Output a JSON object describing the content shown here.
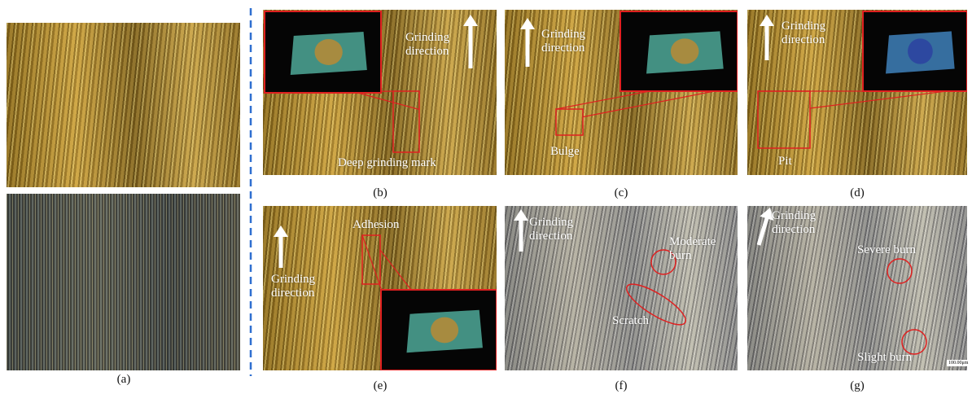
{
  "panels": [
    {
      "label": "(a)",
      "annotations": []
    },
    {
      "label": "(b)",
      "annotations": [
        "Grinding direction",
        "Deep grinding mark"
      ]
    },
    {
      "label": "(c)",
      "annotations": [
        "Grinding direction",
        "Bulge"
      ]
    },
    {
      "label": "(d)",
      "annotations": [
        "Grinding direction",
        "Pit"
      ]
    },
    {
      "label": "(e)",
      "annotations": [
        "Adhesion",
        "Grinding direction"
      ]
    },
    {
      "label": "(f)",
      "annotations": [
        "Grinding direction",
        "Moderate burn",
        "Scratch"
      ]
    },
    {
      "label": "(g)",
      "annotations": [
        "Grinding direction",
        "Severe burn",
        "Slight burn",
        "100.00μm"
      ]
    }
  ]
}
